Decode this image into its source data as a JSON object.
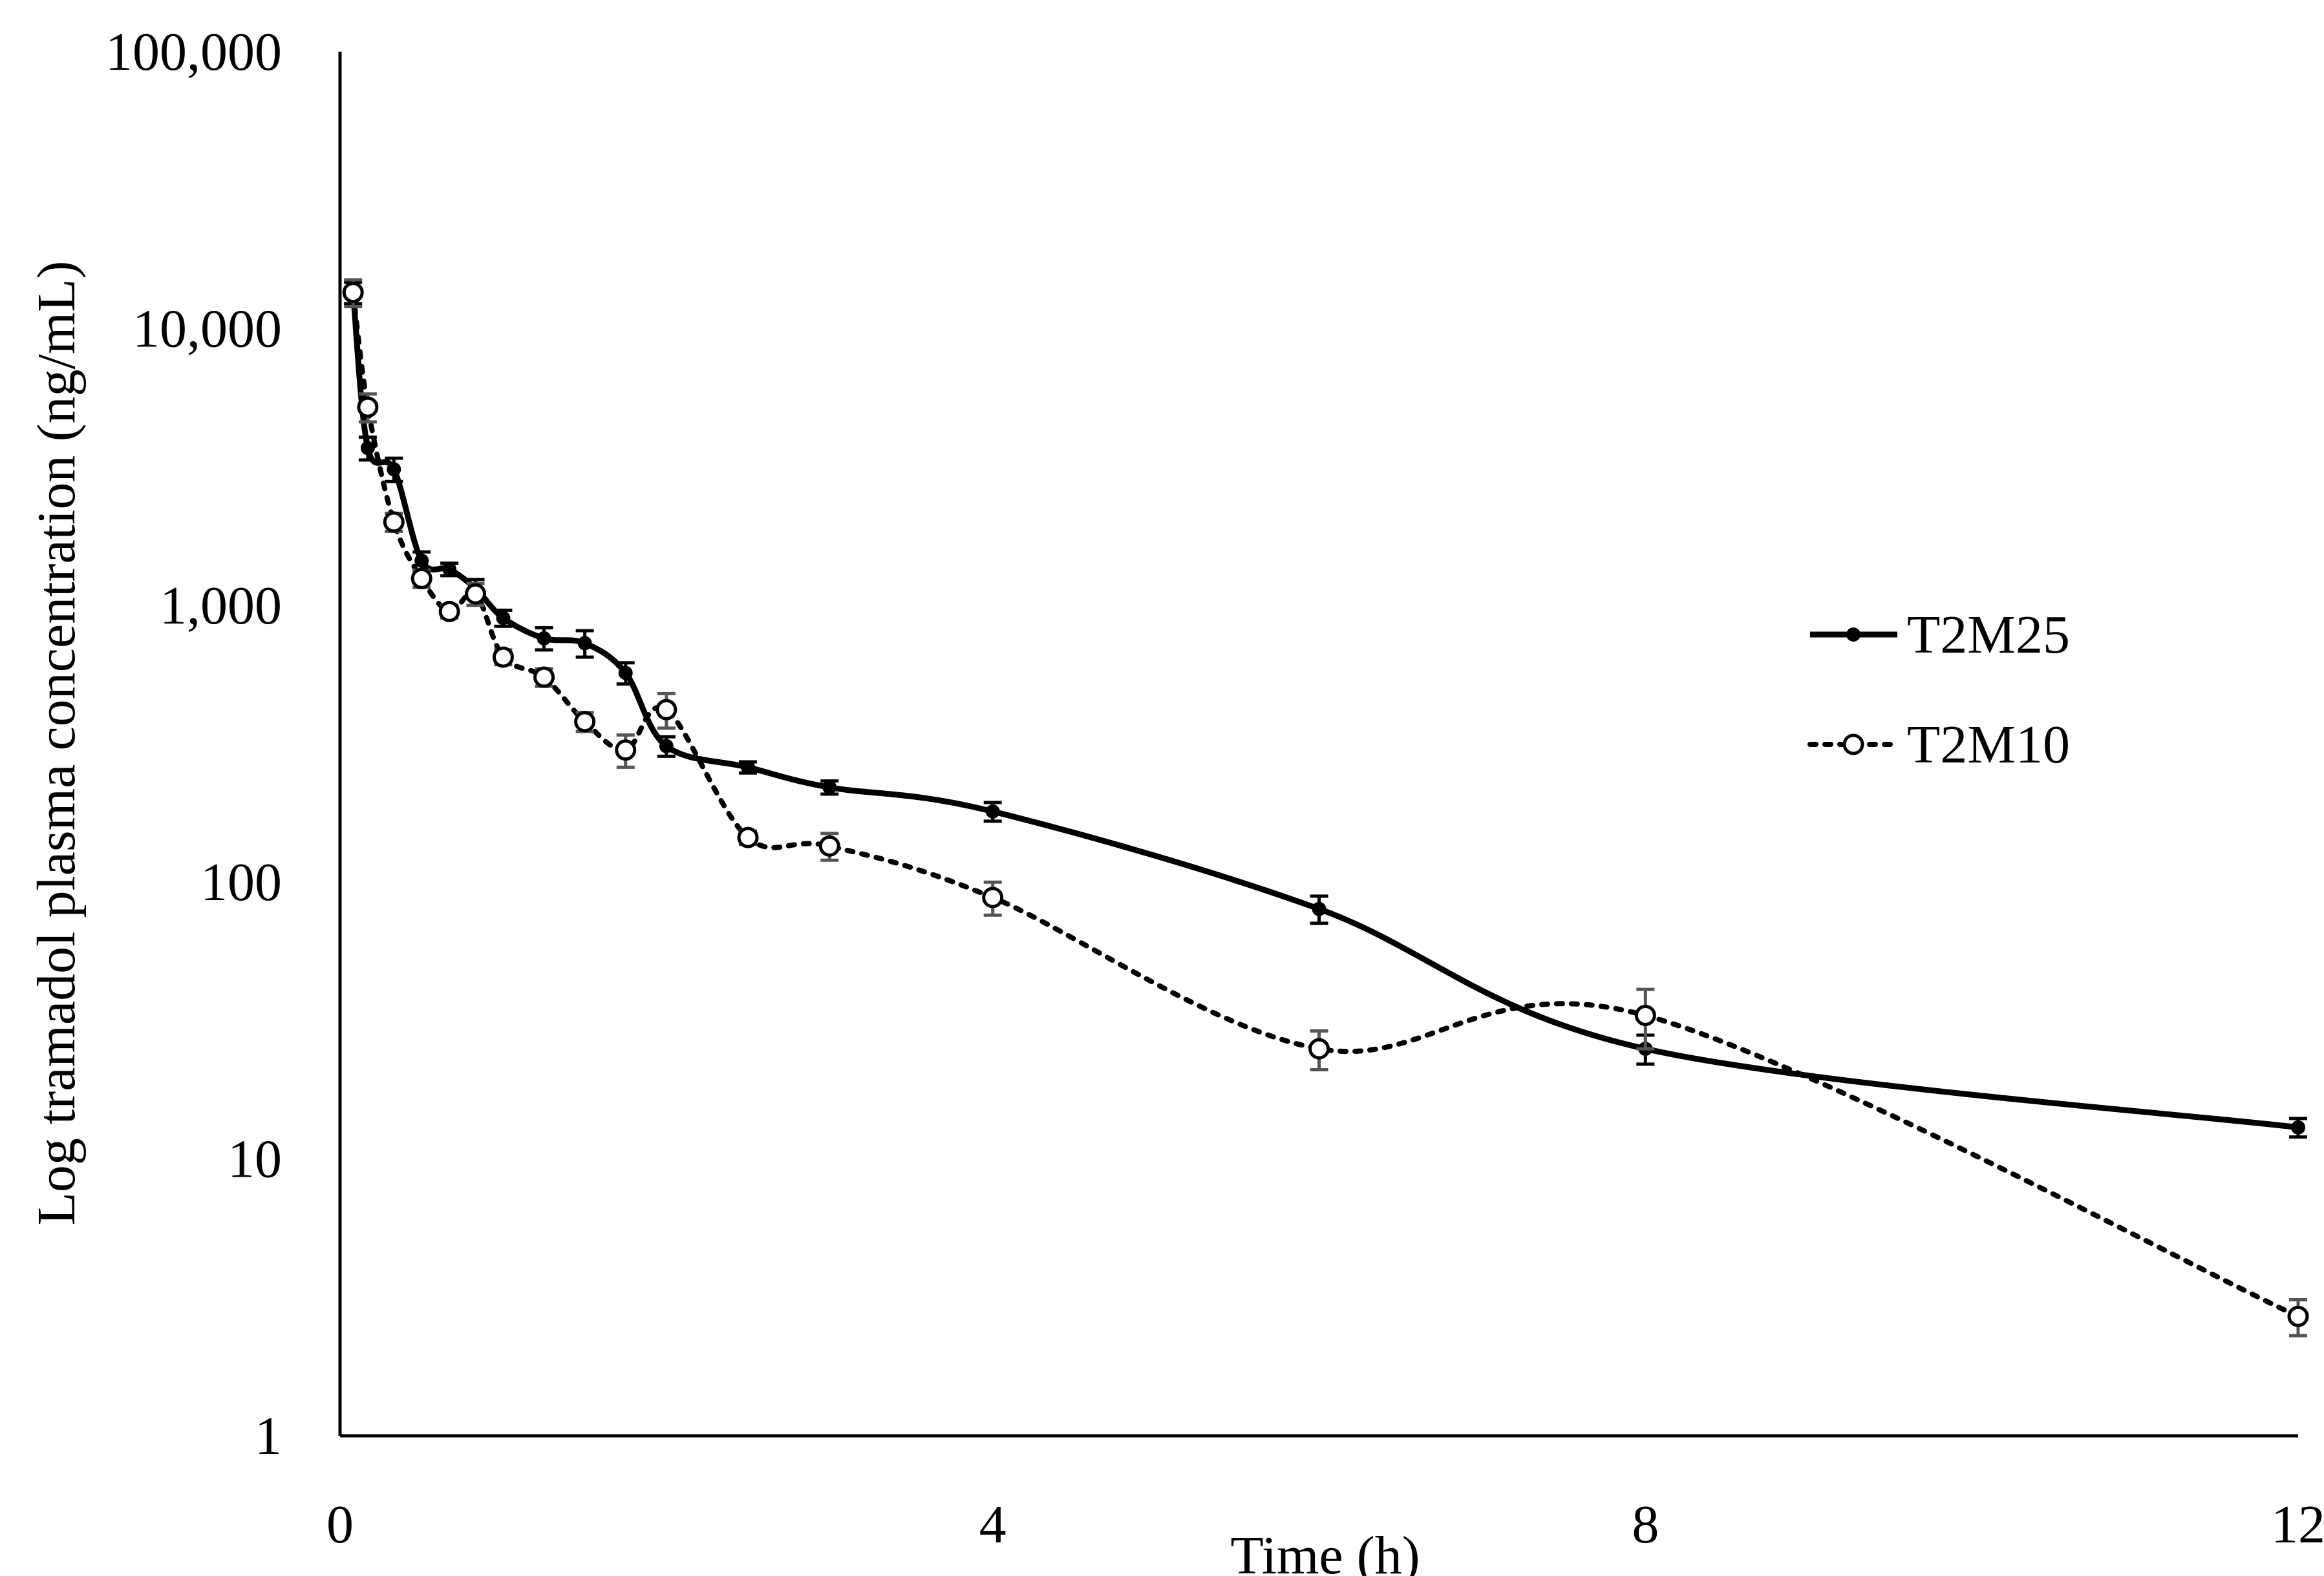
{
  "chart_data": {
    "type": "line",
    "title": "",
    "xlabel": "Time (h)",
    "ylabel": "Log tramadol plasma concentration (ng/mL)",
    "xlim": [
      0,
      12
    ],
    "ylim": [
      1,
      100000
    ],
    "yscale": "log",
    "x_ticks": [
      "0",
      "4",
      "8",
      "12"
    ],
    "y_ticks": [
      "1",
      "10",
      "100",
      "1,000",
      "10,000",
      "100,000"
    ],
    "grid": false,
    "legend_position": "right-center",
    "series": [
      {
        "name": "T2M25",
        "line_style": "solid",
        "marker": "filled-circle",
        "color": "#000000",
        "x": [
          0.08,
          0.17,
          0.33,
          0.5,
          0.67,
          0.83,
          1.0,
          1.25,
          1.5,
          1.75,
          2.0,
          2.5,
          3.0,
          4.0,
          6.0,
          8.0,
          12.0
        ],
        "y": [
          13500,
          3700,
          3100,
          1450,
          1350,
          1150,
          900,
          760,
          730,
          570,
          310,
          260,
          220,
          180,
          80,
          25,
          13
        ],
        "error": [
          1200,
          350,
          300,
          110,
          70,
          90,
          60,
          70,
          80,
          50,
          25,
          12,
          12,
          14,
          9,
          3,
          1
        ]
      },
      {
        "name": "T2M10",
        "line_style": "dotted",
        "marker": "open-circle",
        "color": "#000000",
        "x": [
          0.08,
          0.17,
          0.33,
          0.5,
          0.67,
          0.83,
          1.0,
          1.25,
          1.5,
          1.75,
          2.0,
          2.5,
          3.0,
          4.0,
          6.0,
          8.0,
          12.0
        ],
        "y": [
          13500,
          5200,
          2000,
          1250,
          950,
          1100,
          650,
          550,
          380,
          300,
          420,
          145,
          135,
          88,
          25,
          33,
          2.7
        ],
        "error": [
          1500,
          600,
          150,
          90,
          50,
          100,
          40,
          40,
          30,
          40,
          60,
          8,
          15,
          12,
          4,
          8,
          0.4
        ]
      }
    ]
  }
}
